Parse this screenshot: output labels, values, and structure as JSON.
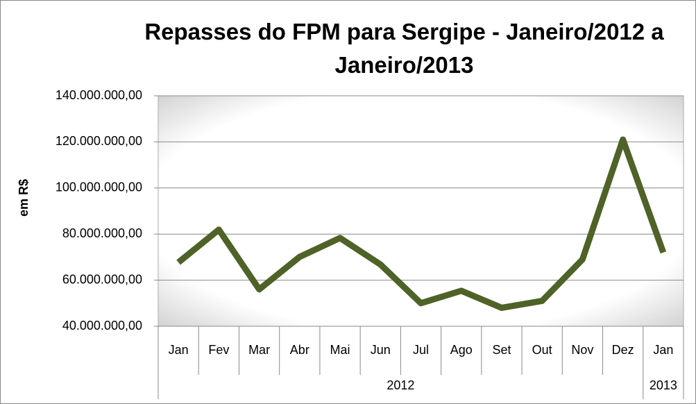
{
  "chart_data": {
    "type": "line",
    "title": "Repasses do FPM para Sergipe - Janeiro/2012 a Janeiro/2013",
    "y_label": "em R$",
    "category_groups": [
      {
        "label": "2012",
        "categories": [
          "Jan",
          "Fev",
          "Mar",
          "Abr",
          "Mai",
          "Jun",
          "Jul",
          "Ago",
          "Set",
          "Out",
          "Nov",
          "Dez"
        ]
      },
      {
        "label": "2013",
        "categories": [
          "Jan"
        ]
      }
    ],
    "values": [
      67700000,
      81900000,
      56000000,
      70100000,
      78300000,
      66800000,
      50000000,
      55400000,
      48000000,
      51000000,
      69000000,
      121000000,
      72000000
    ],
    "color": "#4f6228",
    "ylim": [
      40000000,
      140000000
    ],
    "yticks": [
      {
        "value": 40000000,
        "label": "40.000.000,00"
      },
      {
        "value": 60000000,
        "label": "60.000.000,00"
      },
      {
        "value": 80000000,
        "label": "80.000.000,00"
      },
      {
        "value": 100000000,
        "label": "100.000.000,00"
      },
      {
        "value": 120000000,
        "label": "120.000.000,00"
      },
      {
        "value": 140000000,
        "label": "140.000.000,00"
      }
    ],
    "grid": true
  }
}
